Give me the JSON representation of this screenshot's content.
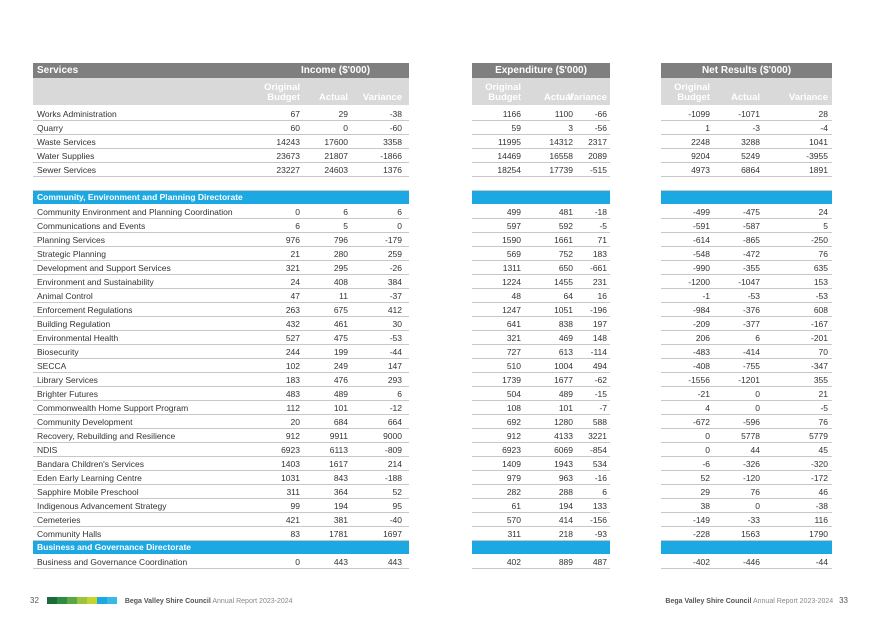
{
  "headers": {
    "services": "Services",
    "income": "Income ($'000)",
    "expenditure": "Expenditure ($'000)",
    "net": "Net Results ($'000)",
    "original_budget": "Original Budget",
    "actual": "Actual",
    "variance": "Variance"
  },
  "rows": [
    {
      "type": "row",
      "label": "Works Administration",
      "inc": [
        "67",
        "29",
        "-38"
      ],
      "exp": [
        "1166",
        "1100",
        "-66"
      ],
      "net": [
        "-1099",
        "-1071",
        "28"
      ]
    },
    {
      "type": "row",
      "label": "Quarry",
      "inc": [
        "60",
        "0",
        "-60"
      ],
      "exp": [
        "59",
        "3",
        "-56"
      ],
      "net": [
        "1",
        "-3",
        "-4"
      ]
    },
    {
      "type": "row",
      "label": "Waste Services",
      "inc": [
        "14243",
        "17600",
        "3358"
      ],
      "exp": [
        "11995",
        "14312",
        "2317"
      ],
      "net": [
        "2248",
        "3288",
        "1041"
      ]
    },
    {
      "type": "row",
      "label": "Water Supplies",
      "inc": [
        "23673",
        "21807",
        "-1866"
      ],
      "exp": [
        "14469",
        "16558",
        "2089"
      ],
      "net": [
        "9204",
        "5249",
        "-3955"
      ]
    },
    {
      "type": "row",
      "label": "Sewer Services",
      "inc": [
        "23227",
        "24603",
        "1376"
      ],
      "exp": [
        "18254",
        "17739",
        "-515"
      ],
      "net": [
        "4973",
        "6864",
        "1891"
      ]
    },
    {
      "type": "blank"
    },
    {
      "type": "section",
      "label": "Community, Environment and Planning Directorate"
    },
    {
      "type": "row",
      "label": "Community Environment and Planning Coordination",
      "inc": [
        "0",
        "6",
        "6"
      ],
      "exp": [
        "499",
        "481",
        "-18"
      ],
      "net": [
        "-499",
        "-475",
        "24"
      ]
    },
    {
      "type": "row",
      "label": "Communications and Events",
      "inc": [
        "6",
        "5",
        "0"
      ],
      "exp": [
        "597",
        "592",
        "-5"
      ],
      "net": [
        "-591",
        "-587",
        "5"
      ]
    },
    {
      "type": "row",
      "label": "Planning Services",
      "inc": [
        "976",
        "796",
        "-179"
      ],
      "exp": [
        "1590",
        "1661",
        "71"
      ],
      "net": [
        "-614",
        "-865",
        "-250"
      ]
    },
    {
      "type": "row",
      "label": "Strategic Planning",
      "inc": [
        "21",
        "280",
        "259"
      ],
      "exp": [
        "569",
        "752",
        "183"
      ],
      "net": [
        "-548",
        "-472",
        "76"
      ]
    },
    {
      "type": "row",
      "label": "Development and Support Services",
      "inc": [
        "321",
        "295",
        "-26"
      ],
      "exp": [
        "1311",
        "650",
        "-661"
      ],
      "net": [
        "-990",
        "-355",
        "635"
      ]
    },
    {
      "type": "row",
      "label": "Environment and Sustainability",
      "inc": [
        "24",
        "408",
        "384"
      ],
      "exp": [
        "1224",
        "1455",
        "231"
      ],
      "net": [
        "-1200",
        "-1047",
        "153"
      ]
    },
    {
      "type": "row",
      "label": "Animal Control",
      "inc": [
        "47",
        "11",
        "-37"
      ],
      "exp": [
        "48",
        "64",
        "16"
      ],
      "net": [
        "-1",
        "-53",
        "-53"
      ]
    },
    {
      "type": "row",
      "label": "Enforcement Regulations",
      "inc": [
        "263",
        "675",
        "412"
      ],
      "exp": [
        "1247",
        "1051",
        "-196"
      ],
      "net": [
        "-984",
        "-376",
        "608"
      ]
    },
    {
      "type": "row",
      "label": "Building Regulation",
      "inc": [
        "432",
        "461",
        "30"
      ],
      "exp": [
        "641",
        "838",
        "197"
      ],
      "net": [
        "-209",
        "-377",
        "-167"
      ]
    },
    {
      "type": "row",
      "label": "Environmental Health",
      "inc": [
        "527",
        "475",
        "-53"
      ],
      "exp": [
        "321",
        "469",
        "148"
      ],
      "net": [
        "206",
        "6",
        "-201"
      ]
    },
    {
      "type": "row",
      "label": "Biosecurity",
      "inc": [
        "244",
        "199",
        "-44"
      ],
      "exp": [
        "727",
        "613",
        "-114"
      ],
      "net": [
        "-483",
        "-414",
        "70"
      ]
    },
    {
      "type": "row",
      "label": "SECCA",
      "inc": [
        "102",
        "249",
        "147"
      ],
      "exp": [
        "510",
        "1004",
        "494"
      ],
      "net": [
        "-408",
        "-755",
        "-347"
      ]
    },
    {
      "type": "row",
      "label": "Library Services",
      "inc": [
        "183",
        "476",
        "293"
      ],
      "exp": [
        "1739",
        "1677",
        "-62"
      ],
      "net": [
        "-1556",
        "-1201",
        "355"
      ]
    },
    {
      "type": "row",
      "label": "Brighter Futures",
      "inc": [
        "483",
        "489",
        "6"
      ],
      "exp": [
        "504",
        "489",
        "-15"
      ],
      "net": [
        "-21",
        "0",
        "21"
      ]
    },
    {
      "type": "row",
      "label": "Commonwealth Home Support Program",
      "inc": [
        "112",
        "101",
        "-12"
      ],
      "exp": [
        "108",
        "101",
        "-7"
      ],
      "net": [
        "4",
        "0",
        "-5"
      ]
    },
    {
      "type": "row",
      "label": "Community Development",
      "inc": [
        "20",
        "684",
        "664"
      ],
      "exp": [
        "692",
        "1280",
        "588"
      ],
      "net": [
        "-672",
        "-596",
        "76"
      ]
    },
    {
      "type": "row",
      "label": "Recovery, Rebuilding and Resilience",
      "inc": [
        "912",
        "9911",
        "9000"
      ],
      "exp": [
        "912",
        "4133",
        "3221"
      ],
      "net": [
        "0",
        "5778",
        "5779"
      ]
    },
    {
      "type": "row",
      "label": "NDIS",
      "inc": [
        "6923",
        "6113",
        "-809"
      ],
      "exp": [
        "6923",
        "6069",
        "-854"
      ],
      "net": [
        "0",
        "44",
        "45"
      ]
    },
    {
      "type": "row",
      "label": "Bandara Children's Services",
      "inc": [
        "1403",
        "1617",
        "214"
      ],
      "exp": [
        "1409",
        "1943",
        "534"
      ],
      "net": [
        "-6",
        "-326",
        "-320"
      ]
    },
    {
      "type": "row",
      "label": "Eden Early Learning Centre",
      "inc": [
        "1031",
        "843",
        "-188"
      ],
      "exp": [
        "979",
        "963",
        "-16"
      ],
      "net": [
        "52",
        "-120",
        "-172"
      ]
    },
    {
      "type": "row",
      "label": "Sapphire Mobile Preschool",
      "inc": [
        "311",
        "364",
        "52"
      ],
      "exp": [
        "282",
        "288",
        "6"
      ],
      "net": [
        "29",
        "76",
        "46"
      ]
    },
    {
      "type": "row",
      "label": "Indigenous Advancement Strategy",
      "inc": [
        "99",
        "194",
        "95"
      ],
      "exp": [
        "61",
        "194",
        "133"
      ],
      "net": [
        "38",
        "0",
        "-38"
      ]
    },
    {
      "type": "row",
      "label": "Cemeteries",
      "inc": [
        "421",
        "381",
        "-40"
      ],
      "exp": [
        "570",
        "414",
        "-156"
      ],
      "net": [
        "-149",
        "-33",
        "116"
      ]
    },
    {
      "type": "row",
      "label": "Community Halls",
      "inc": [
        "83",
        "1781",
        "1697"
      ],
      "exp": [
        "311",
        "218",
        "-93"
      ],
      "net": [
        "-228",
        "1563",
        "1790"
      ]
    },
    {
      "type": "section",
      "label": "Business and Governance Directorate"
    },
    {
      "type": "row",
      "label": "Business and Governance Coordination",
      "inc": [
        "0",
        "443",
        "443"
      ],
      "exp": [
        "402",
        "889",
        "487"
      ],
      "net": [
        "-402",
        "-446",
        "-44"
      ]
    }
  ],
  "footer": {
    "left_page": "32",
    "right_page": "33",
    "council": "Bega Valley Shire Council",
    "report": "Annual Report 2023-2024"
  },
  "colors": {
    "header": "#7f7f7f",
    "subheader": "#d9d9d9",
    "section": "#1ca8e3"
  }
}
